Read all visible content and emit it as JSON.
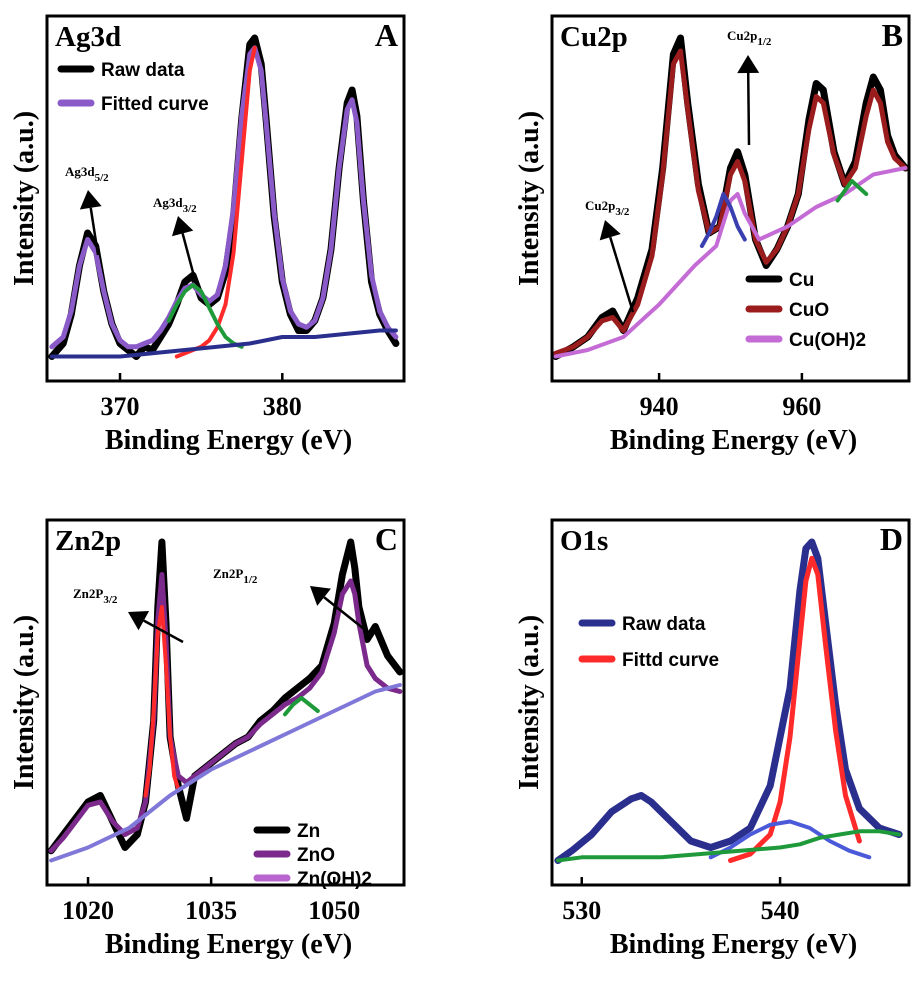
{
  "chart_data": [
    {
      "type": "line",
      "panel_tag": "Ag3d",
      "panel_letter": "A",
      "ylabel": "Intensity (a.u.)",
      "xlabel": "Binding Energy (eV)",
      "xlim": [
        365.5,
        387.5
      ],
      "xticks": [
        370,
        380
      ],
      "legend": [
        "Raw data",
        "Fitted curve"
      ],
      "legend_colors": [
        "#000000",
        "#8a5ac8"
      ],
      "annotations": [
        {
          "main": "Ag3d",
          "sub": "5/2",
          "x": 368.2
        },
        {
          "main": "Ag3d",
          "sub": "3/2",
          "x": 374.3
        }
      ],
      "series": [
        {
          "role": "raw",
          "color": "#000000",
          "x": [
            365.8,
            366.5,
            367.0,
            367.5,
            368.0,
            368.5,
            369.0,
            369.5,
            370.0,
            370.5,
            371.0,
            371.5,
            372.0,
            372.5,
            373.0,
            373.5,
            374.0,
            374.5,
            375.0,
            375.5,
            376.0,
            376.5,
            377.0,
            377.5,
            378.0,
            378.3,
            378.7,
            379.0,
            379.5,
            380.0,
            380.5,
            381.0,
            381.5,
            382.0,
            382.5,
            383.0,
            383.5,
            384.0,
            384.3,
            384.6,
            385.0,
            385.5,
            386.0,
            386.5,
            387.0
          ],
          "y": [
            0.02,
            0.06,
            0.15,
            0.3,
            0.4,
            0.36,
            0.22,
            0.12,
            0.06,
            0.04,
            0.02,
            0.05,
            0.04,
            0.08,
            0.12,
            0.18,
            0.25,
            0.27,
            0.2,
            0.18,
            0.2,
            0.28,
            0.45,
            0.75,
            0.98,
            1.0,
            0.92,
            0.75,
            0.45,
            0.25,
            0.15,
            0.1,
            0.1,
            0.13,
            0.2,
            0.35,
            0.6,
            0.8,
            0.84,
            0.76,
            0.5,
            0.25,
            0.15,
            0.1,
            0.06
          ]
        },
        {
          "role": "fit",
          "color": "#8a5ac8",
          "x": [
            365.8,
            366.5,
            367.0,
            367.5,
            368.0,
            368.5,
            369.0,
            369.5,
            370.0,
            370.5,
            371.0,
            371.5,
            372.0,
            372.5,
            373.0,
            373.5,
            374.0,
            374.5,
            375.0,
            375.5,
            376.0,
            376.5,
            377.0,
            377.5,
            378.0,
            378.3,
            378.7,
            379.0,
            379.5,
            380.0,
            380.5,
            381.0,
            381.5,
            382.0,
            382.5,
            383.0,
            383.5,
            384.0,
            384.3,
            384.6,
            385.0,
            385.5,
            386.0,
            386.5,
            387.0
          ],
          "y": [
            0.05,
            0.08,
            0.16,
            0.3,
            0.38,
            0.34,
            0.22,
            0.12,
            0.07,
            0.05,
            0.05,
            0.06,
            0.07,
            0.1,
            0.14,
            0.19,
            0.23,
            0.24,
            0.21,
            0.19,
            0.21,
            0.3,
            0.48,
            0.76,
            0.95,
            0.97,
            0.9,
            0.74,
            0.46,
            0.26,
            0.16,
            0.12,
            0.11,
            0.13,
            0.2,
            0.35,
            0.6,
            0.78,
            0.81,
            0.74,
            0.5,
            0.27,
            0.16,
            0.11,
            0.08
          ]
        },
        {
          "role": "component",
          "color": "#ff2a2a",
          "x": [
            373.5,
            374.0,
            374.5,
            375.0,
            375.5,
            376.0,
            376.5,
            377.0,
            377.5,
            378.0,
            378.3
          ],
          "y": [
            0.02,
            0.03,
            0.04,
            0.05,
            0.07,
            0.11,
            0.18,
            0.34,
            0.62,
            0.9,
            0.97
          ]
        },
        {
          "role": "component",
          "color": "#1f9a3a",
          "x": [
            373.0,
            373.5,
            374.0,
            374.5,
            375.0,
            375.5,
            376.0,
            376.5,
            377.0,
            377.5
          ],
          "y": [
            0.13,
            0.18,
            0.22,
            0.24,
            0.22,
            0.17,
            0.12,
            0.08,
            0.06,
            0.05
          ]
        },
        {
          "role": "background",
          "color": "#2a2f8e",
          "x": [
            365.8,
            368.0,
            370.0,
            372.0,
            374.0,
            376.0,
            378.0,
            380.0,
            382.0,
            384.0,
            386.0,
            387.0
          ],
          "y": [
            0.02,
            0.02,
            0.02,
            0.03,
            0.04,
            0.05,
            0.06,
            0.08,
            0.08,
            0.09,
            0.1,
            0.1
          ]
        }
      ]
    },
    {
      "type": "line",
      "panel_tag": "Cu2p",
      "panel_letter": "B",
      "ylabel": "Intensity (a.u.)",
      "xlabel": "Binding Energy (eV)",
      "xlim": [
        925.0,
        975.0
      ],
      "xticks": [
        940,
        960
      ],
      "legend": [
        "Cu",
        "CuO",
        "Cu(OH)2"
      ],
      "legend_colors": [
        "#000000",
        "#9b1c1c",
        "#c56bd6"
      ],
      "annotations": [
        {
          "main": "Cu2p",
          "sub": "3/2",
          "x": 931.5
        },
        {
          "main": "Cu2p",
          "sub": "1/2",
          "x": 950.5
        }
      ],
      "series": [
        {
          "role": "raw",
          "color": "#000000",
          "x": [
            925.5,
            928,
            930,
            932,
            933.5,
            935,
            937,
            939,
            940.5,
            942,
            943,
            944,
            945.5,
            947,
            948.5,
            950,
            951,
            952,
            953.5,
            955,
            956.5,
            958,
            959.5,
            961,
            962,
            963,
            964.5,
            966,
            967.5,
            969,
            970,
            971,
            972,
            973,
            974.5
          ],
          "y": [
            0.02,
            0.05,
            0.08,
            0.14,
            0.16,
            0.1,
            0.2,
            0.35,
            0.6,
            0.95,
            1.0,
            0.8,
            0.55,
            0.4,
            0.42,
            0.6,
            0.65,
            0.58,
            0.38,
            0.3,
            0.35,
            0.42,
            0.52,
            0.75,
            0.86,
            0.84,
            0.65,
            0.55,
            0.62,
            0.8,
            0.88,
            0.84,
            0.7,
            0.64,
            0.6
          ]
        },
        {
          "role": "fit",
          "color": "#9b1c1c",
          "x": [
            925.5,
            928,
            930,
            932,
            933.5,
            935,
            937,
            939,
            940.5,
            942,
            943,
            944,
            945.5,
            947,
            948.5,
            950,
            951,
            952,
            953.5,
            955,
            956.5,
            958,
            959.5,
            961,
            962,
            963,
            964.5,
            966,
            967.5,
            969,
            970,
            971,
            972,
            973,
            974.5
          ],
          "y": [
            0.03,
            0.05,
            0.08,
            0.13,
            0.14,
            0.1,
            0.18,
            0.33,
            0.58,
            0.92,
            0.96,
            0.78,
            0.53,
            0.4,
            0.42,
            0.58,
            0.62,
            0.56,
            0.38,
            0.31,
            0.35,
            0.42,
            0.52,
            0.72,
            0.82,
            0.8,
            0.64,
            0.55,
            0.6,
            0.76,
            0.84,
            0.8,
            0.68,
            0.63,
            0.6
          ]
        },
        {
          "role": "component",
          "color": "#c56bd6",
          "x": [
            925.5,
            930,
            935,
            940,
            945,
            948,
            950,
            951,
            952,
            954,
            958,
            962,
            966,
            970,
            974.5
          ],
          "y": [
            0.02,
            0.04,
            0.08,
            0.18,
            0.3,
            0.36,
            0.5,
            0.52,
            0.46,
            0.38,
            0.42,
            0.48,
            0.52,
            0.58,
            0.6
          ]
        },
        {
          "role": "component",
          "color": "#3a3fb0",
          "x": [
            946,
            947,
            948,
            949,
            950,
            951,
            952
          ],
          "y": [
            0.36,
            0.4,
            0.45,
            0.52,
            0.48,
            0.42,
            0.38
          ]
        },
        {
          "role": "component",
          "color": "#1f9a3a",
          "x": [
            965,
            966,
            967,
            968,
            969
          ],
          "y": [
            0.5,
            0.53,
            0.56,
            0.54,
            0.52
          ]
        }
      ]
    },
    {
      "type": "line",
      "panel_tag": "Zn2p",
      "panel_letter": "C",
      "ylabel": "Intensity (a.u.)",
      "xlabel": "Binding Energy (eV)",
      "xlim": [
        1015.0,
        1058.5
      ],
      "xticks": [
        1020,
        1035,
        1050
      ],
      "legend": [
        "Zn",
        "ZnO",
        "Zn(OH)2"
      ],
      "legend_colors": [
        "#000000",
        "#7b2a8c",
        "#b865d0"
      ],
      "annotations": [
        {
          "main": "Zn2P",
          "sub": "3/2",
          "x": 1023.5
        },
        {
          "main": "Zn2P",
          "sub": "1/2",
          "x": 1046.5
        }
      ],
      "series": [
        {
          "role": "raw",
          "color": "#000000",
          "x": [
            1015.5,
            1017,
            1018.5,
            1020,
            1021.5,
            1023,
            1024.5,
            1026,
            1027,
            1028,
            1028.5,
            1029,
            1029.5,
            1030,
            1031,
            1032,
            1033,
            1034,
            1035,
            1036.5,
            1038,
            1039.5,
            1041,
            1042.5,
            1044,
            1045.5,
            1047,
            1048.5,
            1050,
            1051,
            1052,
            1052.5,
            1053,
            1054,
            1055,
            1056.5,
            1058
          ],
          "y": [
            0.05,
            0.1,
            0.15,
            0.2,
            0.22,
            0.14,
            0.06,
            0.1,
            0.2,
            0.45,
            0.8,
            1.0,
            0.75,
            0.4,
            0.25,
            0.15,
            0.28,
            0.3,
            0.32,
            0.35,
            0.38,
            0.4,
            0.45,
            0.48,
            0.52,
            0.55,
            0.58,
            0.62,
            0.75,
            0.9,
            1.0,
            0.92,
            0.8,
            0.7,
            0.74,
            0.65,
            0.6
          ]
        },
        {
          "role": "fit",
          "color": "#7b2a8c",
          "x": [
            1015.5,
            1017,
            1018.5,
            1020,
            1021.5,
            1023,
            1024.5,
            1026,
            1027,
            1028,
            1028.5,
            1029,
            1029.5,
            1030,
            1031,
            1032,
            1033,
            1034,
            1035,
            1036.5,
            1038,
            1039.5,
            1041,
            1042.5,
            1044,
            1045.5,
            1047,
            1048.5,
            1050,
            1051,
            1052,
            1052.5,
            1053,
            1054,
            1055,
            1056.5,
            1058
          ],
          "y": [
            0.05,
            0.09,
            0.14,
            0.19,
            0.2,
            0.14,
            0.1,
            0.12,
            0.2,
            0.45,
            0.76,
            0.9,
            0.7,
            0.4,
            0.28,
            0.26,
            0.28,
            0.3,
            0.32,
            0.35,
            0.38,
            0.4,
            0.44,
            0.47,
            0.5,
            0.52,
            0.55,
            0.6,
            0.72,
            0.84,
            0.88,
            0.84,
            0.75,
            0.62,
            0.58,
            0.55,
            0.54
          ]
        },
        {
          "role": "component",
          "color": "#ff2a2a",
          "x": [
            1027,
            1027.5,
            1028,
            1028.5,
            1029,
            1029.5,
            1030,
            1030.5,
            1031
          ],
          "y": [
            0.22,
            0.3,
            0.48,
            0.72,
            0.8,
            0.62,
            0.4,
            0.28,
            0.24
          ]
        },
        {
          "role": "component",
          "color": "#1f9a3a",
          "x": [
            1044,
            1045,
            1046,
            1047,
            1048
          ],
          "y": [
            0.47,
            0.5,
            0.52,
            0.5,
            0.48
          ]
        },
        {
          "role": "background",
          "color": "#8078d8",
          "x": [
            1015.5,
            1020,
            1025,
            1030,
            1035,
            1040,
            1045,
            1050,
            1055,
            1058
          ],
          "y": [
            0.02,
            0.06,
            0.12,
            0.22,
            0.3,
            0.36,
            0.42,
            0.48,
            0.54,
            0.56
          ]
        }
      ]
    },
    {
      "type": "line",
      "panel_tag": "O1s",
      "panel_letter": "D",
      "ylabel": "Intensity (a.u.)",
      "xlabel": "Binding Energy (eV)",
      "xlim": [
        528.5,
        546.5
      ],
      "xticks": [
        530,
        540
      ],
      "legend": [
        "Raw data",
        "Fittd curve"
      ],
      "legend_colors": [
        "#2a2f8e",
        "#ff2a2a"
      ],
      "series": [
        {
          "role": "raw",
          "color": "#2a2f8e",
          "x": [
            528.8,
            529.5,
            530.5,
            531.5,
            532.5,
            533,
            533.5,
            534.5,
            535.5,
            536.5,
            537.5,
            538.5,
            539.5,
            540.5,
            541,
            541.3,
            541.6,
            541.9,
            542.3,
            542.8,
            543.3,
            544,
            545,
            546
          ],
          "y": [
            0.02,
            0.05,
            0.1,
            0.17,
            0.21,
            0.22,
            0.2,
            0.14,
            0.08,
            0.06,
            0.08,
            0.12,
            0.25,
            0.55,
            0.85,
            0.98,
            1.0,
            0.95,
            0.75,
            0.5,
            0.3,
            0.18,
            0.12,
            0.1
          ]
        },
        {
          "role": "fit",
          "color": "#ff2a2a",
          "x": [
            537.5,
            538.5,
            539.5,
            540.0,
            540.5,
            541.0,
            541.3,
            541.6,
            541.9,
            542.3,
            542.8,
            543.3,
            544.0
          ],
          "y": [
            0.02,
            0.04,
            0.1,
            0.2,
            0.4,
            0.7,
            0.88,
            0.95,
            0.9,
            0.68,
            0.42,
            0.22,
            0.08
          ]
        },
        {
          "role": "component",
          "color": "#4a5ad8",
          "x": [
            536.5,
            537.5,
            538.5,
            539.5,
            540.5,
            541.5,
            542.5,
            543.5,
            544.5
          ],
          "y": [
            0.03,
            0.06,
            0.1,
            0.13,
            0.14,
            0.12,
            0.08,
            0.05,
            0.03
          ]
        },
        {
          "role": "background",
          "color": "#1f9a3a",
          "x": [
            528.8,
            530,
            532,
            534,
            536,
            538,
            540,
            541,
            542,
            543,
            544,
            545,
            546
          ],
          "y": [
            0.02,
            0.03,
            0.03,
            0.03,
            0.04,
            0.05,
            0.06,
            0.07,
            0.09,
            0.1,
            0.11,
            0.11,
            0.1
          ]
        }
      ]
    }
  ]
}
